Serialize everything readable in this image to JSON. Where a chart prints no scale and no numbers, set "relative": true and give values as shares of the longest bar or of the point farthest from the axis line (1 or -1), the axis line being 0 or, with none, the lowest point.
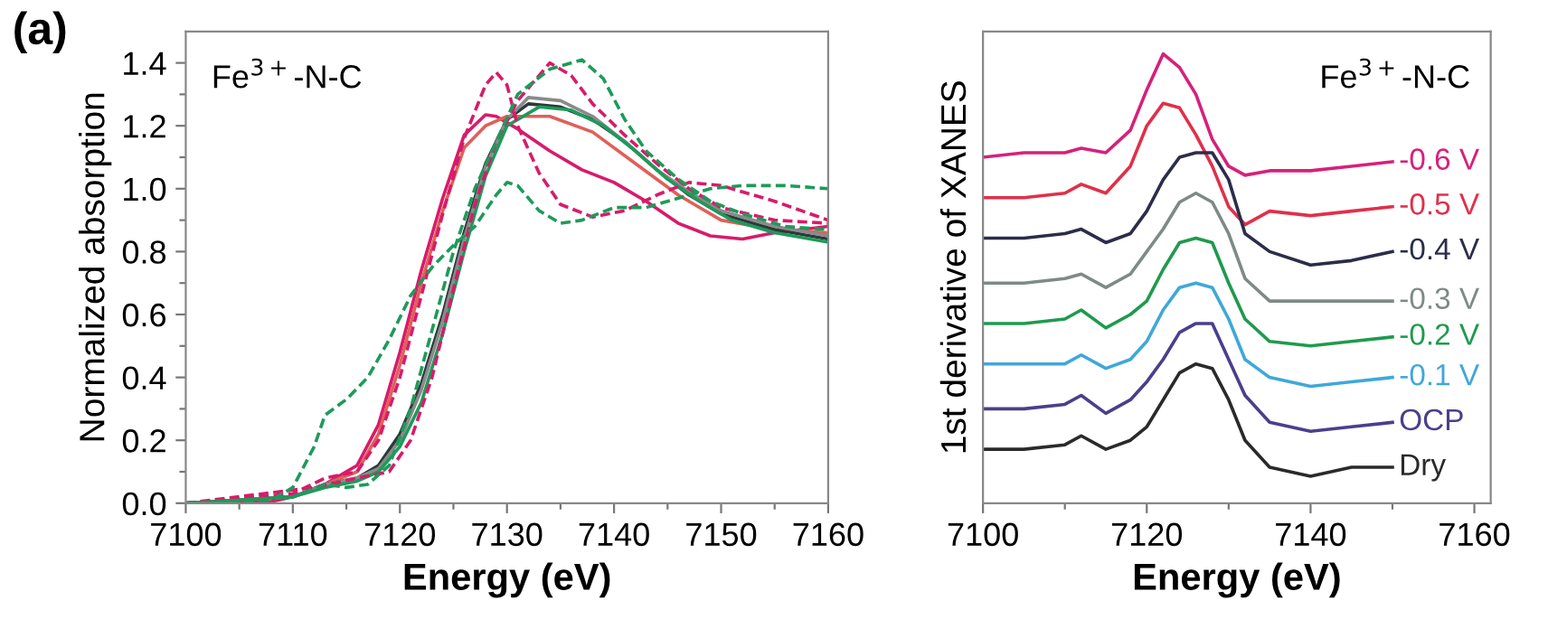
{
  "chart_data": [
    {
      "type": "line",
      "xlabel": "Energy (eV)",
      "ylabel": "Normalized absorption",
      "annotations": [
        "(a)",
        "Fe$^{3+}$-N-C"
      ],
      "xlim": [
        7100,
        7160
      ],
      "ylim": [
        0,
        1.5
      ],
      "xticks": [
        7100,
        {
          "value": 7105,
          "label": null
        },
        7110,
        {
          "value": 7115,
          "label": null
        },
        7120,
        {
          "value": 7125,
          "label": null
        },
        7130,
        {
          "value": 7135,
          "label": null
        },
        7140,
        {
          "value": 7145,
          "label": null
        },
        7150,
        {
          "value": 7155,
          "label": null
        },
        7160
      ],
      "yticks": [
        {
          "value": 0.0,
          "label": "0.0"
        },
        {
          "value": 0.1,
          "label": null
        },
        {
          "value": 0.2,
          "label": "0.2"
        },
        {
          "value": 0.3,
          "label": null
        },
        {
          "value": 0.4,
          "label": "0.4"
        },
        {
          "value": 0.5,
          "label": null
        },
        {
          "value": 0.6,
          "label": "0.6"
        },
        {
          "value": 0.7,
          "label": null
        },
        {
          "value": 0.8,
          "label": "0.8"
        },
        {
          "value": 0.9,
          "label": null
        },
        {
          "value": 1.0,
          "label": "1.0"
        },
        {
          "value": 1.1,
          "label": null
        },
        {
          "value": 1.2,
          "label": "1.2"
        },
        {
          "value": 1.3,
          "label": null
        },
        {
          "value": 1.4,
          "label": "1.4"
        }
      ],
      "grid": false,
      "legend": false,
      "marker": "none",
      "series": [
        {
          "color": "#d81b6a",
          "line_style": "solid",
          "x": [
            7100,
            7108,
            7110,
            7113,
            7116,
            7118,
            7120,
            7122,
            7124,
            7126,
            7128,
            7129,
            7131,
            7134,
            7137,
            7140,
            7143,
            7146,
            7149,
            7152,
            7155,
            7160
          ],
          "values": [
            0,
            0.005,
            0.02,
            0.06,
            0.12,
            0.25,
            0.48,
            0.74,
            0.97,
            1.17,
            1.235,
            1.23,
            1.19,
            1.12,
            1.06,
            1.02,
            0.96,
            0.89,
            0.85,
            0.84,
            0.86,
            0.88
          ]
        },
        {
          "color": "#e0605a",
          "line_style": "solid",
          "x": [
            7100,
            7110,
            7113,
            7116,
            7118,
            7120,
            7122,
            7124,
            7126,
            7128,
            7130,
            7134,
            7138,
            7142,
            7146,
            7150,
            7155,
            7160
          ],
          "values": [
            0,
            0.02,
            0.06,
            0.1,
            0.22,
            0.44,
            0.7,
            0.93,
            1.13,
            1.2,
            1.23,
            1.23,
            1.18,
            1.08,
            0.98,
            0.9,
            0.87,
            0.86
          ]
        },
        {
          "color": "#2b3a3a",
          "line_style": "solid",
          "x": [
            7100,
            7110,
            7113,
            7116,
            7118,
            7120,
            7122,
            7124,
            7126,
            7128,
            7130,
            7132,
            7135,
            7138,
            7141,
            7144,
            7147,
            7150,
            7155,
            7160
          ],
          "values": [
            0,
            0.02,
            0.06,
            0.08,
            0.12,
            0.22,
            0.38,
            0.6,
            0.86,
            1.08,
            1.22,
            1.27,
            1.26,
            1.22,
            1.15,
            1.06,
            0.98,
            0.92,
            0.87,
            0.84
          ]
        },
        {
          "color": "#8a8a8a",
          "line_style": "solid",
          "x": [
            7100,
            7110,
            7113,
            7116,
            7118,
            7120,
            7122,
            7124,
            7126,
            7128,
            7130,
            7132,
            7135,
            7138,
            7141,
            7144,
            7147,
            7150,
            7155,
            7160
          ],
          "values": [
            0,
            0.02,
            0.06,
            0.08,
            0.11,
            0.2,
            0.36,
            0.58,
            0.84,
            1.07,
            1.22,
            1.29,
            1.28,
            1.23,
            1.15,
            1.06,
            0.99,
            0.93,
            0.88,
            0.85
          ]
        },
        {
          "color": "#1e9a5a",
          "line_style": "solid",
          "x": [
            7100,
            7110,
            7113,
            7116,
            7118,
            7120,
            7122,
            7124,
            7126,
            7128,
            7130,
            7133,
            7136,
            7139,
            7142,
            7145,
            7148,
            7151,
            7155,
            7160
          ],
          "values": [
            0,
            0.02,
            0.05,
            0.07,
            0.1,
            0.18,
            0.32,
            0.54,
            0.8,
            1.04,
            1.2,
            1.26,
            1.25,
            1.2,
            1.12,
            1.03,
            0.96,
            0.9,
            0.86,
            0.83
          ]
        },
        {
          "color": "#d81b6a",
          "line_style": "dashed",
          "x": [
            7100,
            7110,
            7113,
            7116,
            7118,
            7120,
            7122,
            7124,
            7126,
            7128,
            7129,
            7130,
            7131,
            7133,
            7135,
            7138,
            7141,
            7144,
            7147,
            7150,
            7155,
            7160
          ],
          "values": [
            0,
            0.03,
            0.08,
            0.1,
            0.2,
            0.4,
            0.66,
            0.92,
            1.16,
            1.33,
            1.37,
            1.33,
            1.2,
            1.05,
            0.95,
            0.91,
            0.93,
            0.98,
            1.02,
            1.01,
            0.96,
            0.9
          ]
        },
        {
          "color": "#d81b6a",
          "line_style": "dashed",
          "x": [
            7100,
            7112,
            7116,
            7119,
            7121,
            7123,
            7125,
            7127,
            7129,
            7131,
            7134,
            7136,
            7138,
            7141,
            7144,
            7147,
            7150,
            7155,
            7160
          ],
          "values": [
            0,
            0.05,
            0.08,
            0.1,
            0.2,
            0.4,
            0.68,
            0.95,
            1.15,
            1.28,
            1.4,
            1.36,
            1.27,
            1.17,
            1.08,
            1.0,
            0.94,
            0.9,
            0.89
          ]
        },
        {
          "color": "#1e9a5a",
          "line_style": "dashed",
          "x": [
            7100,
            7108,
            7110,
            7112,
            7113,
            7115,
            7117,
            7119,
            7121,
            7123,
            7125,
            7127,
            7129,
            7130,
            7131,
            7133,
            7135,
            7137,
            7140,
            7143,
            7146,
            7149,
            7152,
            7156,
            7160
          ],
          "values": [
            0,
            0.01,
            0.05,
            0.18,
            0.28,
            0.33,
            0.4,
            0.52,
            0.66,
            0.75,
            0.82,
            0.88,
            0.98,
            1.02,
            1.01,
            0.93,
            0.89,
            0.9,
            0.94,
            0.94,
            0.97,
            1.0,
            1.01,
            1.01,
            1.0
          ]
        },
        {
          "color": "#1e9a5a",
          "line_style": "dashed",
          "x": [
            7100,
            7110,
            7113,
            7115,
            7117,
            7119,
            7121,
            7123,
            7125,
            7127,
            7129,
            7131,
            7134,
            7137,
            7139,
            7141,
            7143,
            7146,
            7149,
            7152,
            7156,
            7160
          ],
          "values": [
            0,
            0.02,
            0.06,
            0.05,
            0.06,
            0.12,
            0.3,
            0.55,
            0.8,
            1.0,
            1.15,
            1.3,
            1.38,
            1.41,
            1.35,
            1.22,
            1.12,
            1.03,
            0.96,
            0.92,
            0.88,
            0.87
          ]
        }
      ]
    },
    {
      "type": "line",
      "xlabel": "Energy (eV)",
      "ylabel": "1st derivative of XANES",
      "annotations": [
        "Fe$^{3+}$-N-C"
      ],
      "relative": true,
      "tick_labels": "x",
      "xlim": [
        7100,
        7162
      ],
      "xticks": [
        7100,
        {
          "value": 7110,
          "label": null
        },
        7120,
        {
          "value": 7130,
          "label": null
        },
        7140,
        {
          "value": 7150,
          "label": null
        },
        7160
      ],
      "grid": false,
      "legend": false,
      "marker": "none",
      "line_style": "solid",
      "x": [
        7100,
        7105,
        7110,
        7112,
        7115,
        7118,
        7120,
        7122,
        7124,
        7126,
        7128,
        7130,
        7132,
        7135,
        7140,
        7145,
        7150
      ],
      "series": [
        {
          "name": "-0.6 V",
          "color": "#d6217a",
          "values": [
            0.77,
            0.78,
            0.78,
            0.79,
            0.78,
            0.83,
            0.92,
            1.0,
            0.97,
            0.91,
            0.81,
            0.75,
            0.73,
            0.74,
            0.74,
            0.75,
            0.76
          ]
        },
        {
          "name": "-0.5 V",
          "color": "#e0304a",
          "values": [
            0.68,
            0.68,
            0.69,
            0.71,
            0.69,
            0.75,
            0.84,
            0.89,
            0.88,
            0.82,
            0.75,
            0.66,
            0.62,
            0.65,
            0.64,
            0.65,
            0.66
          ]
        },
        {
          "name": "-0.4 V",
          "color": "#2b2d4a",
          "values": [
            0.59,
            0.59,
            0.6,
            0.61,
            0.58,
            0.6,
            0.65,
            0.72,
            0.77,
            0.78,
            0.78,
            0.72,
            0.6,
            0.56,
            0.53,
            0.54,
            0.56
          ]
        },
        {
          "name": "-0.3 V",
          "color": "#7f8a87",
          "values": [
            0.49,
            0.49,
            0.5,
            0.51,
            0.48,
            0.51,
            0.56,
            0.61,
            0.67,
            0.69,
            0.67,
            0.6,
            0.5,
            0.45,
            0.45,
            0.45,
            0.45
          ]
        },
        {
          "name": "-0.2 V",
          "color": "#1f9a4e",
          "values": [
            0.4,
            0.4,
            0.41,
            0.43,
            0.39,
            0.42,
            0.45,
            0.52,
            0.58,
            0.59,
            0.58,
            0.49,
            0.41,
            0.36,
            0.35,
            0.36,
            0.37
          ]
        },
        {
          "name": "-0.1 V",
          "color": "#3fa8d8",
          "values": [
            0.31,
            0.31,
            0.31,
            0.33,
            0.3,
            0.32,
            0.36,
            0.43,
            0.48,
            0.49,
            0.48,
            0.41,
            0.32,
            0.28,
            0.26,
            0.27,
            0.28
          ]
        },
        {
          "name": "OCP",
          "color": "#4a3f8c",
          "values": [
            0.21,
            0.21,
            0.22,
            0.24,
            0.2,
            0.23,
            0.27,
            0.32,
            0.38,
            0.4,
            0.4,
            0.32,
            0.24,
            0.18,
            0.16,
            0.17,
            0.18
          ]
        },
        {
          "name": "Dry",
          "color": "#2a2a2a",
          "values": [
            0.12,
            0.12,
            0.13,
            0.15,
            0.12,
            0.14,
            0.17,
            0.23,
            0.29,
            0.31,
            0.3,
            0.23,
            0.14,
            0.08,
            0.06,
            0.08,
            0.08
          ]
        }
      ]
    }
  ]
}
